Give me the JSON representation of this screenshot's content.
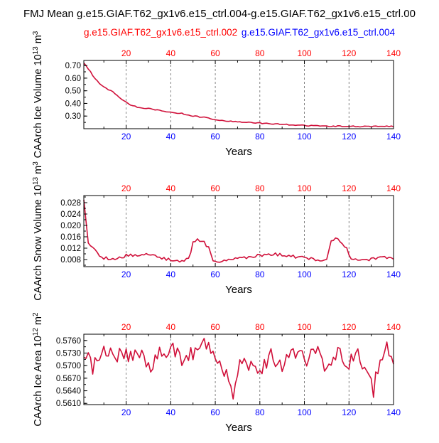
{
  "main_title": "FMJ Mean g.e15.GIAF.T62_gx1v6.e15_ctrl.004-g.e15.GIAF.T62_gx1v6.e15_ctrl.00",
  "legend": [
    {
      "label": "g.e15.GIAF.T62_gx1v6.e15_ctrl.002",
      "color": "#ff0000"
    },
    {
      "label": "g.e15.GIAF.T62_gx1v6.e15_ctrl.004",
      "color": "#0000ff"
    }
  ],
  "colors": {
    "series": "#d0103a",
    "top_ticks": "#ff0000",
    "bottom_ticks": "#0000ff",
    "axis": "#000000",
    "grid": "#666666"
  },
  "chart_data": [
    {
      "type": "line",
      "ylabel_parts": [
        "CAArch Ice Volume 10",
        "13",
        " m",
        "3"
      ],
      "xlabel": "Years",
      "xlim": [
        1,
        140
      ],
      "ylim": [
        0.2,
        0.74
      ],
      "xticks": [
        20,
        40,
        60,
        80,
        100,
        120,
        140
      ],
      "yticks": [
        0.3,
        0.4,
        0.5,
        0.6,
        0.7
      ],
      "ytick_labels": [
        "0.30",
        "0.40",
        "0.50",
        "0.60",
        "0.70"
      ],
      "anchors": [
        [
          1,
          0.72
        ],
        [
          2,
          0.7
        ],
        [
          3,
          0.67
        ],
        [
          4,
          0.65
        ],
        [
          5,
          0.62
        ],
        [
          6,
          0.6
        ],
        [
          8,
          0.56
        ],
        [
          10,
          0.53
        ],
        [
          12,
          0.51
        ],
        [
          14,
          0.49
        ],
        [
          16,
          0.46
        ],
        [
          18,
          0.43
        ],
        [
          20,
          0.41
        ],
        [
          22,
          0.39
        ],
        [
          25,
          0.37
        ],
        [
          30,
          0.36
        ],
        [
          35,
          0.345
        ],
        [
          40,
          0.33
        ],
        [
          45,
          0.32
        ],
        [
          50,
          0.3
        ],
        [
          55,
          0.29
        ],
        [
          60,
          0.27
        ],
        [
          65,
          0.26
        ],
        [
          70,
          0.255
        ],
        [
          75,
          0.25
        ],
        [
          80,
          0.245
        ],
        [
          85,
          0.24
        ],
        [
          90,
          0.235
        ],
        [
          95,
          0.23
        ],
        [
          100,
          0.225
        ],
        [
          105,
          0.223
        ],
        [
          110,
          0.22
        ],
        [
          115,
          0.22
        ],
        [
          120,
          0.22
        ],
        [
          125,
          0.218
        ],
        [
          130,
          0.218
        ],
        [
          135,
          0.218
        ],
        [
          140,
          0.22
        ]
      ],
      "noise": 0.004
    },
    {
      "type": "line",
      "ylabel_parts": [
        "CAArch Snow Volume 10",
        "13",
        " m",
        "3"
      ],
      "xlabel": "Years",
      "xlim": [
        1,
        140
      ],
      "ylim": [
        0.0055,
        0.0305
      ],
      "xticks": [
        20,
        40,
        60,
        80,
        100,
        120,
        140
      ],
      "yticks": [
        0.008,
        0.012,
        0.016,
        0.02,
        0.024,
        0.028
      ],
      "ytick_labels": [
        "0.008",
        "0.012",
        "0.016",
        "0.020",
        "0.024",
        "0.028"
      ],
      "anchors": [
        [
          1,
          0.029
        ],
        [
          2,
          0.021
        ],
        [
          3,
          0.014
        ],
        [
          5,
          0.012
        ],
        [
          7,
          0.01
        ],
        [
          10,
          0.0085
        ],
        [
          15,
          0.008
        ],
        [
          20,
          0.0095
        ],
        [
          25,
          0.0095
        ],
        [
          30,
          0.01
        ],
        [
          35,
          0.0085
        ],
        [
          40,
          0.008
        ],
        [
          45,
          0.0075
        ],
        [
          48,
          0.008
        ],
        [
          50,
          0.014
        ],
        [
          52,
          0.015
        ],
        [
          55,
          0.014
        ],
        [
          57,
          0.012
        ],
        [
          59,
          0.008
        ],
        [
          62,
          0.0075
        ],
        [
          65,
          0.008
        ],
        [
          70,
          0.0085
        ],
        [
          75,
          0.0085
        ],
        [
          80,
          0.0095
        ],
        [
          85,
          0.01
        ],
        [
          90,
          0.0095
        ],
        [
          95,
          0.009
        ],
        [
          100,
          0.0085
        ],
        [
          105,
          0.008
        ],
        [
          110,
          0.008
        ],
        [
          112,
          0.015
        ],
        [
          114,
          0.0155
        ],
        [
          117,
          0.014
        ],
        [
          119,
          0.012
        ],
        [
          121,
          0.008
        ],
        [
          125,
          0.0075
        ],
        [
          130,
          0.008
        ],
        [
          135,
          0.0085
        ],
        [
          140,
          0.0085
        ]
      ],
      "noise": 0.0006
    },
    {
      "type": "line",
      "ylabel_parts": [
        "CAArch Ice Area 10",
        "12",
        " m",
        "2"
      ],
      "xlabel": "Years",
      "xlim": [
        1,
        140
      ],
      "ylim": [
        0.5607,
        0.5775
      ],
      "xticks": [
        20,
        40,
        60,
        80,
        100,
        120,
        140
      ],
      "yticks": [
        0.561,
        0.564,
        0.567,
        0.57,
        0.573,
        0.576
      ],
      "ytick_labels": [
        "0.5610",
        "0.5640",
        "0.5670",
        "0.5700",
        "0.5730",
        "0.5760"
      ],
      "anchors": [
        [
          1,
          0.572
        ],
        [
          5,
          0.57
        ],
        [
          10,
          0.5735
        ],
        [
          15,
          0.5725
        ],
        [
          20,
          0.572
        ],
        [
          25,
          0.574
        ],
        [
          30,
          0.57
        ],
        [
          35,
          0.573
        ],
        [
          40,
          0.574
        ],
        [
          45,
          0.571
        ],
        [
          50,
          0.573
        ],
        [
          55,
          0.575
        ],
        [
          60,
          0.571
        ],
        [
          65,
          0.567
        ],
        [
          68,
          0.563
        ],
        [
          72,
          0.572
        ],
        [
          76,
          0.57
        ],
        [
          80,
          0.569
        ],
        [
          85,
          0.572
        ],
        [
          90,
          0.57
        ],
        [
          95,
          0.574
        ],
        [
          100,
          0.571
        ],
        [
          105,
          0.573
        ],
        [
          110,
          0.57
        ],
        [
          115,
          0.574
        ],
        [
          120,
          0.571
        ],
        [
          124,
          0.572
        ],
        [
          128,
          0.568
        ],
        [
          131,
          0.564
        ],
        [
          134,
          0.572
        ],
        [
          137,
          0.574
        ],
        [
          140,
          0.571
        ]
      ],
      "noise": 0.0022
    }
  ]
}
